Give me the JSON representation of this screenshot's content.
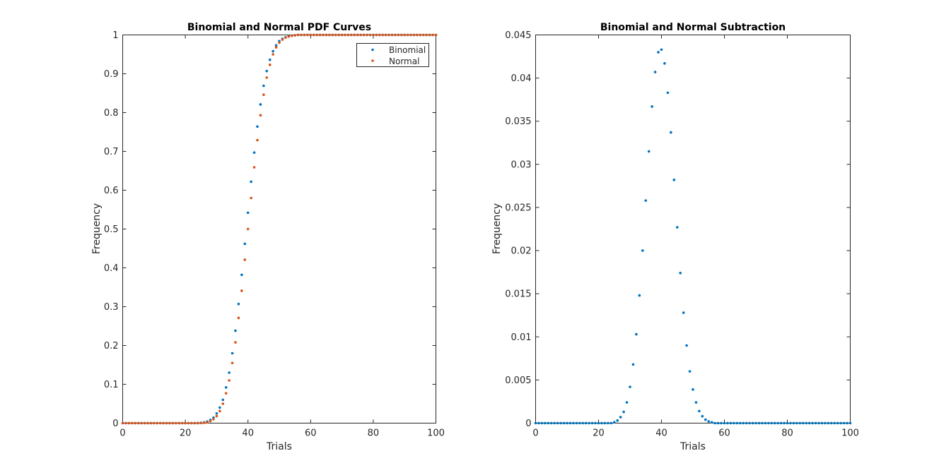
{
  "chart_data": [
    {
      "type": "scatter",
      "title": "Binomial and Normal PDF Curves",
      "xlabel": "Trials",
      "ylabel": "Frequency",
      "xlim": [
        0,
        100
      ],
      "ylim": [
        0,
        1
      ],
      "xticks": [
        "0",
        "20",
        "40",
        "60",
        "80",
        "100"
      ],
      "yticks": [
        "0",
        "0.1",
        "0.2",
        "0.3",
        "0.4",
        "0.5",
        "0.6",
        "0.7",
        "0.8",
        "0.9",
        "1"
      ],
      "legend_position": "top-right",
      "grid": false,
      "x": [
        0,
        1,
        2,
        3,
        4,
        5,
        6,
        7,
        8,
        9,
        10,
        11,
        12,
        13,
        14,
        15,
        16,
        17,
        18,
        19,
        20,
        21,
        22,
        23,
        24,
        25,
        26,
        27,
        28,
        29,
        30,
        31,
        32,
        33,
        34,
        35,
        36,
        37,
        38,
        39,
        40,
        41,
        42,
        43,
        44,
        45,
        46,
        47,
        48,
        49,
        50,
        51,
        52,
        53,
        54,
        55,
        56,
        57,
        58,
        59,
        60,
        61,
        62,
        63,
        64,
        65,
        66,
        67,
        68,
        69,
        70,
        71,
        72,
        73,
        74,
        75,
        76,
        77,
        78,
        79,
        80,
        81,
        82,
        83,
        84,
        85,
        86,
        87,
        88,
        89,
        90,
        91,
        92,
        93,
        94,
        95,
        96,
        97,
        98,
        99,
        100
      ],
      "series": [
        {
          "name": "Binomial",
          "color": "#0072BD",
          "values": [
            0,
            0,
            0,
            0,
            0,
            0,
            0,
            0,
            0,
            0,
            0,
            0,
            0,
            0,
            0,
            0,
            0,
            0,
            0,
            0,
            0,
            0,
            0,
            0,
            0.0003,
            0.0008,
            0.002,
            0.004,
            0.008,
            0.014,
            0.025,
            0.04,
            0.06,
            0.092,
            0.13,
            0.18,
            0.238,
            0.307,
            0.382,
            0.462,
            0.542,
            0.622,
            0.697,
            0.764,
            0.821,
            0.869,
            0.907,
            0.936,
            0.958,
            0.973,
            0.984,
            0.99,
            0.994,
            0.997,
            0.998,
            0.999,
            1,
            1,
            1,
            1,
            1,
            1,
            1,
            1,
            1,
            1,
            1,
            1,
            1,
            1,
            1,
            1,
            1,
            1,
            1,
            1,
            1,
            1,
            1,
            1,
            1,
            1,
            1,
            1,
            1,
            1,
            1,
            1,
            1,
            1,
            1,
            1,
            1,
            1,
            1,
            1,
            1,
            1,
            1,
            1,
            1
          ]
        },
        {
          "name": "Normal",
          "color": "#D95319",
          "values": [
            0,
            0,
            0,
            0,
            0,
            0,
            0,
            0,
            0,
            0,
            0,
            0,
            0,
            0,
            0,
            0,
            0,
            0,
            0,
            0,
            0,
            0,
            0,
            0,
            0.0001,
            0.0003,
            0.0009,
            0.002,
            0.005,
            0.01,
            0.018,
            0.031,
            0.05,
            0.077,
            0.11,
            0.155,
            0.208,
            0.271,
            0.341,
            0.421,
            0.5,
            0.58,
            0.659,
            0.729,
            0.793,
            0.846,
            0.89,
            0.923,
            0.95,
            0.968,
            0.98,
            0.988,
            0.993,
            0.996,
            0.998,
            0.999,
            1,
            1,
            1,
            1,
            1,
            1,
            1,
            1,
            1,
            1,
            1,
            1,
            1,
            1,
            1,
            1,
            1,
            1,
            1,
            1,
            1,
            1,
            1,
            1,
            1,
            1,
            1,
            1,
            1,
            1,
            1,
            1,
            1,
            1,
            1,
            1,
            1,
            1,
            1,
            1,
            1,
            1,
            1,
            1,
            1
          ]
        }
      ]
    },
    {
      "type": "scatter",
      "title": "Binomial and Normal Subtraction",
      "xlabel": "Trials",
      "ylabel": "Frequency",
      "xlim": [
        0,
        100
      ],
      "ylim": [
        0,
        0.045
      ],
      "xticks": [
        "0",
        "20",
        "40",
        "60",
        "80",
        "100"
      ],
      "yticks": [
        "0",
        "0.005",
        "0.01",
        "0.015",
        "0.02",
        "0.025",
        "0.03",
        "0.035",
        "0.04",
        "0.045"
      ],
      "grid": false,
      "x": [
        0,
        1,
        2,
        3,
        4,
        5,
        6,
        7,
        8,
        9,
        10,
        11,
        12,
        13,
        14,
        15,
        16,
        17,
        18,
        19,
        20,
        21,
        22,
        23,
        24,
        25,
        26,
        27,
        28,
        29,
        30,
        31,
        32,
        33,
        34,
        35,
        36,
        37,
        38,
        39,
        40,
        41,
        42,
        43,
        44,
        45,
        46,
        47,
        48,
        49,
        50,
        51,
        52,
        53,
        54,
        55,
        56,
        57,
        58,
        59,
        60,
        61,
        62,
        63,
        64,
        65,
        66,
        67,
        68,
        69,
        70,
        71,
        72,
        73,
        74,
        75,
        76,
        77,
        78,
        79,
        80,
        81,
        82,
        83,
        84,
        85,
        86,
        87,
        88,
        89,
        90,
        91,
        92,
        93,
        94,
        95,
        96,
        97,
        98,
        99,
        100
      ],
      "series": [
        {
          "color": "#0072BD",
          "values": [
            0,
            0,
            0,
            0,
            0,
            0,
            0,
            0,
            0,
            0,
            0,
            0,
            0,
            0,
            0,
            0,
            0,
            0,
            0,
            0,
            0,
            0,
            0,
            0,
            0,
            0.0001,
            0.0003,
            0.0007,
            0.0013,
            0.0024,
            0.0042,
            0.0068,
            0.0103,
            0.0148,
            0.02,
            0.0258,
            0.0315,
            0.0367,
            0.0407,
            0.043,
            0.0433,
            0.0417,
            0.0383,
            0.0337,
            0.0282,
            0.0227,
            0.0174,
            0.0128,
            0.009,
            0.006,
            0.0039,
            0.0024,
            0.0014,
            0.0008,
            0.0004,
            0.0002,
            0.0001,
            0,
            0,
            0,
            0,
            0,
            0,
            0,
            0,
            0,
            0,
            0,
            0,
            0,
            0,
            0,
            0,
            0,
            0,
            0,
            0,
            0,
            0,
            0,
            0,
            0,
            0,
            0,
            0,
            0,
            0,
            0,
            0,
            0,
            0,
            0,
            0,
            0,
            0,
            0,
            0,
            0,
            0,
            0,
            0
          ]
        }
      ]
    }
  ]
}
